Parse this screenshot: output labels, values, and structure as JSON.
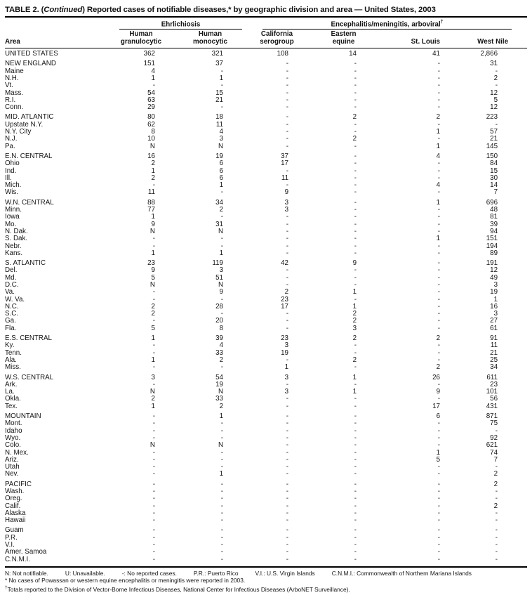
{
  "title": {
    "pre": "TABLE 2. (",
    "continued": "Continued",
    "post": ") Reported cases of notifiable diseases,* by geographic division and area — United States, 2003"
  },
  "table": {
    "area_header": "Area",
    "group1": {
      "label": "Ehrlichiosis",
      "sup": ""
    },
    "group2": {
      "label": "Encephalitis/meningitis, arboviral",
      "sup": "†"
    },
    "columns": [
      {
        "line1": "Human",
        "line2": "granulocytic"
      },
      {
        "line1": "Human",
        "line2": "monocytic"
      },
      {
        "line1": "California",
        "line2": "serogroup"
      },
      {
        "line1": "Eastern",
        "line2": "equine"
      },
      {
        "line1": "",
        "line2": "St. Louis"
      },
      {
        "line1": "",
        "line2": "West Nile"
      }
    ],
    "sections": [
      {
        "rows": [
          {
            "area": "UNITED STATES",
            "values": [
              "362",
              "321",
              "108",
              "14",
              "41",
              "2,866"
            ]
          }
        ]
      },
      {
        "rows": [
          {
            "area": "NEW ENGLAND",
            "values": [
              "151",
              "37",
              "-",
              "-",
              "-",
              "31"
            ]
          },
          {
            "area": "Maine",
            "values": [
              "4",
              "-",
              "-",
              "-",
              "-",
              "-"
            ]
          },
          {
            "area": "N.H.",
            "values": [
              "1",
              "1",
              "-",
              "-",
              "-",
              "2"
            ]
          },
          {
            "area": "Vt.",
            "values": [
              "-",
              "-",
              "-",
              "-",
              "-",
              "-"
            ]
          },
          {
            "area": "Mass.",
            "values": [
              "54",
              "15",
              "-",
              "-",
              "-",
              "12"
            ]
          },
          {
            "area": "R.I.",
            "values": [
              "63",
              "21",
              "-",
              "-",
              "-",
              "5"
            ]
          },
          {
            "area": "Conn.",
            "values": [
              "29",
              "-",
              "-",
              "-",
              "-",
              "12"
            ]
          }
        ]
      },
      {
        "rows": [
          {
            "area": "MID. ATLANTIC",
            "values": [
              "80",
              "18",
              "-",
              "2",
              "2",
              "223"
            ]
          },
          {
            "area": "Upstate N.Y.",
            "values": [
              "62",
              "11",
              "-",
              "-",
              "-",
              "-"
            ]
          },
          {
            "area": "N.Y. City",
            "values": [
              "8",
              "4",
              "-",
              "-",
              "1",
              "57"
            ]
          },
          {
            "area": "N.J.",
            "values": [
              "10",
              "3",
              "-",
              "2",
              "-",
              "21"
            ]
          },
          {
            "area": "Pa.",
            "values": [
              "N",
              "N",
              "-",
              "-",
              "1",
              "145"
            ]
          }
        ]
      },
      {
        "rows": [
          {
            "area": "E.N. CENTRAL",
            "values": [
              "16",
              "19",
              "37",
              "-",
              "4",
              "150"
            ]
          },
          {
            "area": "Ohio",
            "values": [
              "2",
              "6",
              "17",
              "-",
              "-",
              "84"
            ]
          },
          {
            "area": "Ind.",
            "values": [
              "1",
              "6",
              "-",
              "-",
              "-",
              "15"
            ]
          },
          {
            "area": "Ill.",
            "values": [
              "2",
              "6",
              "11",
              "-",
              "-",
              "30"
            ]
          },
          {
            "area": "Mich.",
            "values": [
              "-",
              "1",
              "-",
              "-",
              "4",
              "14"
            ]
          },
          {
            "area": "Wis.",
            "values": [
              "11",
              "-",
              "9",
              "-",
              "-",
              "7"
            ]
          }
        ]
      },
      {
        "rows": [
          {
            "area": "W.N. CENTRAL",
            "values": [
              "88",
              "34",
              "3",
              "-",
              "1",
              "696"
            ]
          },
          {
            "area": "Minn.",
            "values": [
              "77",
              "2",
              "3",
              "-",
              "-",
              "48"
            ]
          },
          {
            "area": "Iowa",
            "values": [
              "1",
              "-",
              "-",
              "-",
              "-",
              "81"
            ]
          },
          {
            "area": "Mo.",
            "values": [
              "9",
              "31",
              "-",
              "-",
              "-",
              "39"
            ]
          },
          {
            "area": "N. Dak.",
            "values": [
              "N",
              "N",
              "-",
              "-",
              "-",
              "94"
            ]
          },
          {
            "area": "S. Dak.",
            "values": [
              "-",
              "-",
              "-",
              "-",
              "1",
              "151"
            ]
          },
          {
            "area": "Nebr.",
            "values": [
              "-",
              "-",
              "-",
              "-",
              "-",
              "194"
            ]
          },
          {
            "area": "Kans.",
            "values": [
              "1",
              "1",
              "-",
              "-",
              "-",
              "89"
            ]
          }
        ]
      },
      {
        "rows": [
          {
            "area": "S. ATLANTIC",
            "values": [
              "23",
              "119",
              "42",
              "9",
              "-",
              "191"
            ]
          },
          {
            "area": "Del.",
            "values": [
              "9",
              "3",
              "-",
              "-",
              "-",
              "12"
            ]
          },
          {
            "area": "Md.",
            "values": [
              "5",
              "51",
              "-",
              "-",
              "-",
              "49"
            ]
          },
          {
            "area": "D.C.",
            "values": [
              "N",
              "N",
              "-",
              "-",
              "-",
              "3"
            ]
          },
          {
            "area": "Va.",
            "values": [
              "-",
              "9",
              "2",
              "1",
              "-",
              "19"
            ]
          },
          {
            "area": "W. Va.",
            "values": [
              "-",
              "-",
              "23",
              "-",
              "-",
              "1"
            ]
          },
          {
            "area": "N.C.",
            "values": [
              "2",
              "28",
              "17",
              "1",
              "-",
              "16"
            ]
          },
          {
            "area": "S.C.",
            "values": [
              "2",
              "-",
              "-",
              "2",
              "-",
              "3"
            ]
          },
          {
            "area": "Ga.",
            "values": [
              "-",
              "20",
              "-",
              "2",
              "-",
              "27"
            ]
          },
          {
            "area": "Fla.",
            "values": [
              "5",
              "8",
              "-",
              "3",
              "-",
              "61"
            ]
          }
        ]
      },
      {
        "rows": [
          {
            "area": "E.S. CENTRAL",
            "values": [
              "1",
              "39",
              "23",
              "2",
              "2",
              "91"
            ]
          },
          {
            "area": "Ky.",
            "values": [
              "-",
              "4",
              "3",
              "-",
              "-",
              "11"
            ]
          },
          {
            "area": "Tenn.",
            "values": [
              "-",
              "33",
              "19",
              "-",
              "-",
              "21"
            ]
          },
          {
            "area": "Ala.",
            "values": [
              "1",
              "2",
              "-",
              "2",
              "-",
              "25"
            ]
          },
          {
            "area": "Miss.",
            "values": [
              "-",
              "-",
              "1",
              "-",
              "2",
              "34"
            ]
          }
        ]
      },
      {
        "rows": [
          {
            "area": "W.S. CENTRAL",
            "values": [
              "3",
              "54",
              "3",
              "1",
              "26",
              "611"
            ]
          },
          {
            "area": "Ark.",
            "values": [
              "-",
              "19",
              "-",
              "-",
              "-",
              "23"
            ]
          },
          {
            "area": "La.",
            "values": [
              "N",
              "N",
              "3",
              "1",
              "9",
              "101"
            ]
          },
          {
            "area": "Okla.",
            "values": [
              "2",
              "33",
              "-",
              "-",
              "-",
              "56"
            ]
          },
          {
            "area": "Tex.",
            "values": [
              "1",
              "2",
              "-",
              "-",
              "17",
              "431"
            ]
          }
        ]
      },
      {
        "rows": [
          {
            "area": "MOUNTAIN",
            "values": [
              "-",
              "1",
              "-",
              "-",
              "6",
              "871"
            ]
          },
          {
            "area": "Mont.",
            "values": [
              "-",
              "-",
              "-",
              "-",
              "-",
              "75"
            ]
          },
          {
            "area": "Idaho",
            "values": [
              "-",
              "-",
              "-",
              "-",
              "-",
              "-"
            ]
          },
          {
            "area": "Wyo.",
            "values": [
              "-",
              "-",
              "-",
              "-",
              "-",
              "92"
            ]
          },
          {
            "area": "Colo.",
            "values": [
              "N",
              "N",
              "-",
              "-",
              "-",
              "621"
            ]
          },
          {
            "area": "N. Mex.",
            "values": [
              "-",
              "-",
              "-",
              "-",
              "1",
              "74"
            ]
          },
          {
            "area": "Ariz.",
            "values": [
              "-",
              "-",
              "-",
              "-",
              "5",
              "7"
            ]
          },
          {
            "area": "Utah",
            "values": [
              "-",
              "-",
              "-",
              "-",
              "-",
              "-"
            ]
          },
          {
            "area": "Nev.",
            "values": [
              "-",
              "1",
              "-",
              "-",
              "-",
              "2"
            ]
          }
        ]
      },
      {
        "rows": [
          {
            "area": "PACIFIC",
            "values": [
              "-",
              "-",
              "-",
              "-",
              "-",
              "2"
            ]
          },
          {
            "area": "Wash.",
            "values": [
              "-",
              "-",
              "-",
              "-",
              "-",
              "-"
            ]
          },
          {
            "area": "Oreg.",
            "values": [
              "-",
              "-",
              "-",
              "-",
              "-",
              "-"
            ]
          },
          {
            "area": "Calif.",
            "values": [
              "-",
              "-",
              "-",
              "-",
              "-",
              "2"
            ]
          },
          {
            "area": "Alaska",
            "values": [
              "-",
              "-",
              "-",
              "-",
              "-",
              "-"
            ]
          },
          {
            "area": "Hawaii",
            "values": [
              "-",
              "-",
              "-",
              "-",
              "-",
              "-"
            ]
          }
        ]
      },
      {
        "rows": [
          {
            "area": "Guam",
            "values": [
              "-",
              "-",
              "-",
              "-",
              "-",
              "-"
            ]
          },
          {
            "area": "P.R.",
            "values": [
              "-",
              "-",
              "-",
              "-",
              "-",
              "-"
            ]
          },
          {
            "area": "V.I.",
            "values": [
              "-",
              "-",
              "-",
              "-",
              "-",
              "-"
            ]
          },
          {
            "area": "Amer. Samoa",
            "values": [
              "-",
              "-",
              "-",
              "-",
              "-",
              "-"
            ]
          },
          {
            "area": "C.N.M.I.",
            "values": [
              "-",
              "-",
              "-",
              "-",
              "-",
              "-"
            ]
          }
        ]
      }
    ]
  },
  "footnotes": {
    "legend": [
      "N: Not notifiable.",
      "U: Unavailable.",
      "-: No reported cases.",
      "P.R.: Puerto Rico",
      "V.I.: U.S. Virgin Islands",
      "C.N.M.I.: Commonwealth of Northern Mariana Islands"
    ],
    "star_symbol": "*",
    "star_text": "No cases of Powassan or western equine encephalitis or meningitis were reported in 2003.",
    "dagger_symbol": "†",
    "dagger_text": "Totals reported to the Division of Vector-Borne Infectious Diseases, National Center for Infectious Diseases (ArboNET Surveillance)."
  }
}
